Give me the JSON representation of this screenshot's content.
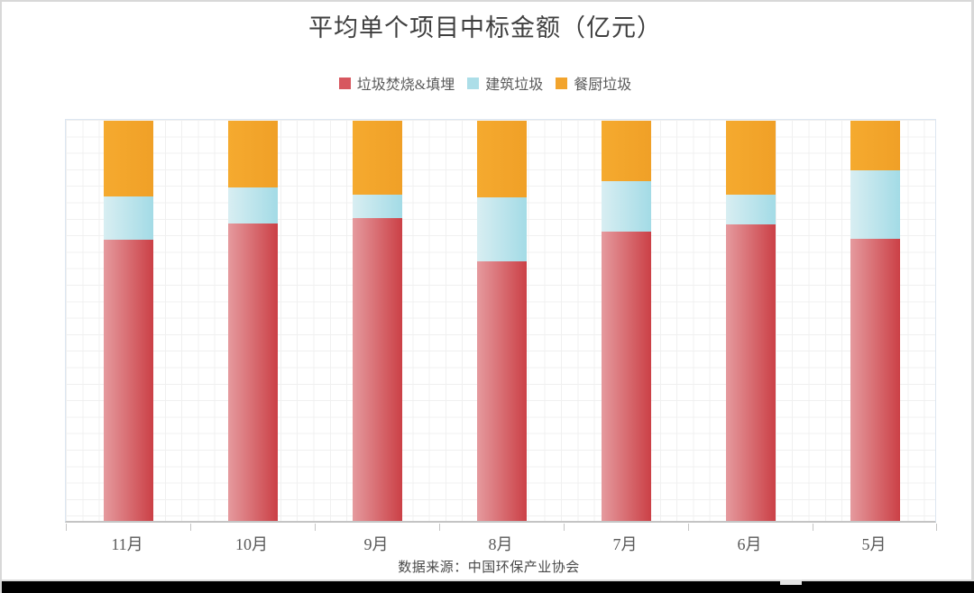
{
  "chart_data": {
    "type": "bar",
    "stacked": true,
    "units": "percent_of_total",
    "title": "平均单个项目中标金额（亿元）",
    "source": "数据来源：中国环保产业协会",
    "categories": [
      "11月",
      "10月",
      "9月",
      "8月",
      "7月",
      "6月",
      "5月"
    ],
    "series": [
      {
        "name": "垃圾焚烧&填埋",
        "swatch_color": "#d7575f",
        "gradient_left": "#e59a9e",
        "gradient_right": "#cb4046",
        "values": [
          70.2,
          74.3,
          75.6,
          64.8,
          72.2,
          74.2,
          70.4
        ]
      },
      {
        "name": "建筑垃圾",
        "swatch_color": "#acdee8",
        "gradient_left": "#d8eef2",
        "gradient_right": "#a3dbe6",
        "values": [
          10.8,
          9.1,
          6.0,
          16.0,
          12.6,
          7.4,
          17.3
        ]
      },
      {
        "name": "餐厨垃圾",
        "swatch_color": "#f2a42d",
        "gradient_left": "#f5aa2f",
        "gradient_right": "#f0a027",
        "values": [
          19.0,
          16.6,
          18.4,
          19.2,
          15.2,
          18.4,
          12.3
        ]
      }
    ],
    "legend_position": "top",
    "grid": true,
    "y_axis_labels_visible": false,
    "ylim": [
      0,
      100
    ]
  },
  "page": {
    "background_color": "#ffffff",
    "border_color": "#d8d8d8",
    "bottom_bar_color": "#000000",
    "grid_color": "#f0f0f0",
    "axis_color": "#c4c4c4",
    "title_color": "#3f3f3f",
    "label_color": "#595959"
  }
}
